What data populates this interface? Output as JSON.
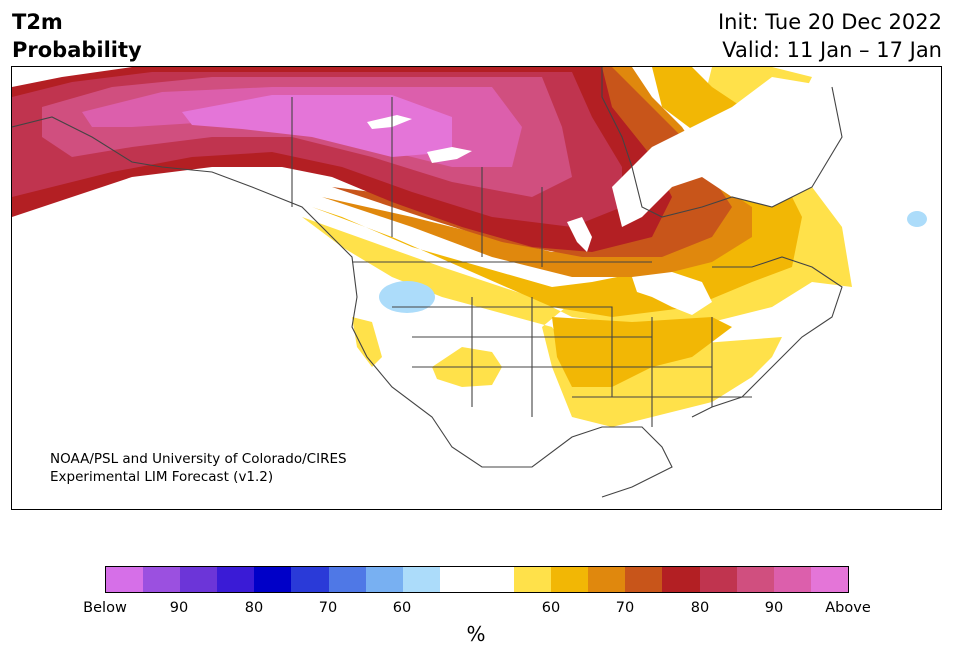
{
  "header": {
    "title_line1": "T2m",
    "title_line2": "Probability",
    "init": "Init: Tue 20 Dec 2022",
    "valid": "Valid: 11 Jan – 17 Jan"
  },
  "credit": {
    "line1": "NOAA/PSL and University of Colorado/CIRES",
    "line2": "Experimental LIM Forecast (v1.2)"
  },
  "colorbar": {
    "unit": "%",
    "colors": [
      "#d66fe8",
      "#9b50e0",
      "#6c35d8",
      "#3a1bd6",
      "#0000c8",
      "#2a3ad8",
      "#4f78e6",
      "#78b0f2",
      "#acdcfa",
      "#ffffff",
      "#ffffff",
      "#ffe14a",
      "#f2b705",
      "#e0880d",
      "#c8551a",
      "#b31f23",
      "#c0344f",
      "#d04f7f",
      "#dc5fac",
      "#e475d8"
    ],
    "labels": [
      "Below",
      "90",
      "80",
      "70",
      "60",
      "60",
      "70",
      "80",
      "90",
      "Above"
    ]
  },
  "legend_classes": {
    "below_normal": [
      "Below",
      "90",
      "80",
      "70",
      "60"
    ],
    "above_normal": [
      "60",
      "70",
      "80",
      "90",
      "Above"
    ]
  }
}
